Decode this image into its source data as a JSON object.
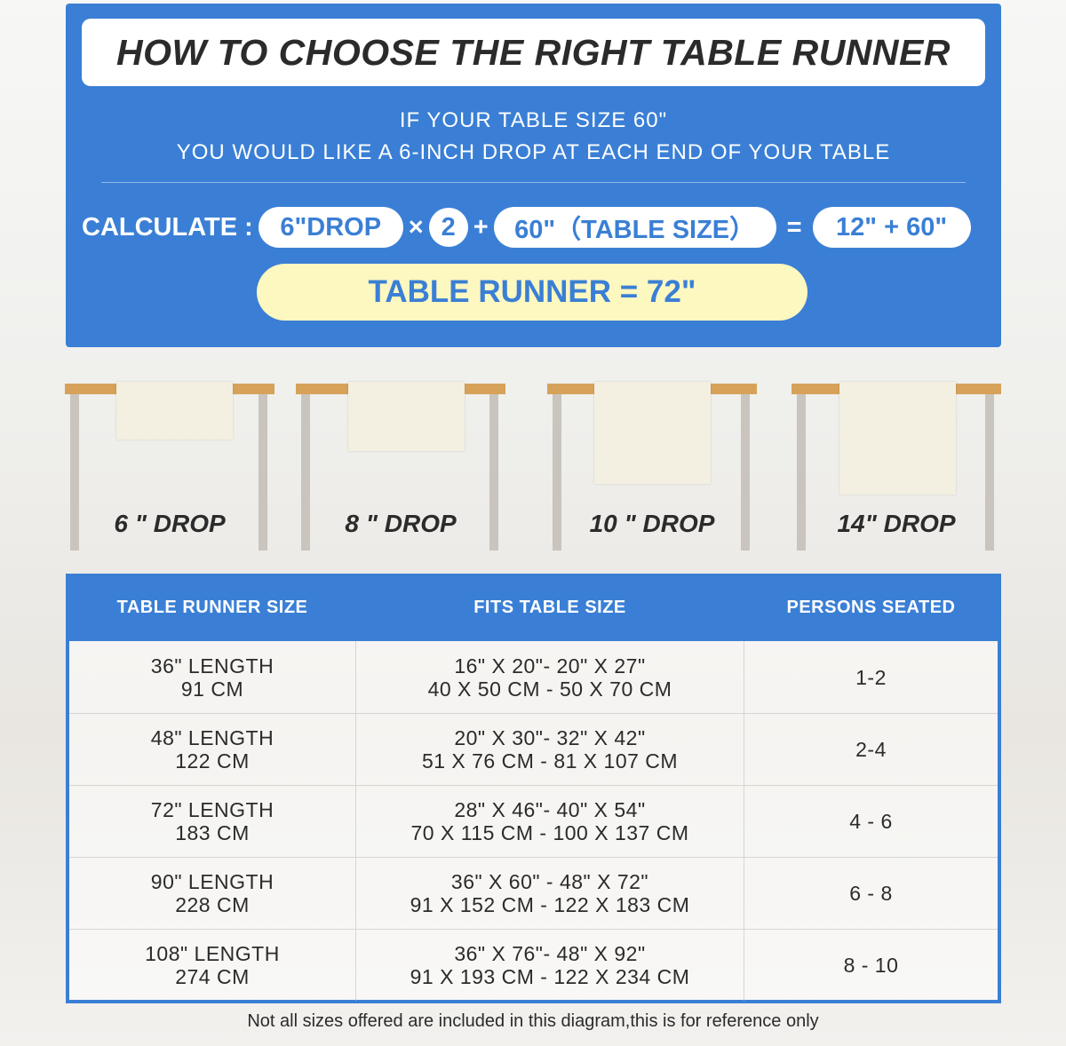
{
  "header": {
    "title": "HOW TO CHOOSE THE RIGHT TABLE RUNNER"
  },
  "intro": {
    "line1": "IF YOUR TABLE SIZE 60\"",
    "line2": "YOU WOULD LIKE A 6-INCH DROP AT EACH END OF YOUR TABLE"
  },
  "calculation": {
    "label": "CALCULATE :",
    "drop": "6\"DROP",
    "times": "×",
    "multiplier": "2",
    "plus": "+",
    "table_size": "60\"（TABLE SIZE）",
    "equals": "=",
    "sum": "12\" + 60\"",
    "result": "TABLE RUNNER = 72\""
  },
  "drops": [
    {
      "label": "6 \" DROP",
      "drop_inches": 6
    },
    {
      "label": "8 \" DROP",
      "drop_inches": 8
    },
    {
      "label": "10 \" DROP",
      "drop_inches": 10
    },
    {
      "label": "14\" DROP",
      "drop_inches": 14
    }
  ],
  "table": {
    "headers": [
      "TABLE RUNNER SIZE",
      "FITS TABLE SIZE",
      "PERSONS SEATED"
    ],
    "rows": [
      {
        "size": [
          "36\" LENGTH",
          "91 CM"
        ],
        "fits": [
          "16\" X 20\"- 20\" X 27\"",
          "40 X 50 CM - 50 X 70 CM"
        ],
        "persons": "1-2"
      },
      {
        "size": [
          "48\" LENGTH",
          "122 CM"
        ],
        "fits": [
          "20\" X 30\"- 32\" X 42\"",
          "51 X 76 CM - 81 X 107 CM"
        ],
        "persons": "2-4"
      },
      {
        "size": [
          "72\" LENGTH",
          "183 CM"
        ],
        "fits": [
          "28\" X 46\"- 40\" X 54\"",
          "70 X 115 CM - 100 X 137 CM"
        ],
        "persons": "4 - 6"
      },
      {
        "size": [
          "90\" LENGTH",
          "228 CM"
        ],
        "fits": [
          "36\" X 60\" - 48\" X 72\"",
          "91 X 152 CM - 122 X 183 CM"
        ],
        "persons": "6 - 8"
      },
      {
        "size": [
          "108\" LENGTH",
          "274 CM"
        ],
        "fits": [
          "36\" X 76\"- 48\" X 92\"",
          "91 X 193 CM - 122 X 234 CM"
        ],
        "persons": "8 - 10"
      }
    ]
  },
  "footnote": "Not all sizes offered are included in this diagram,this is for reference only",
  "colors": {
    "brand_blue": "#3a7fd5",
    "highlight_yellow": "#fdf7c0",
    "tabletop": "#d6a25a",
    "runner": "#f3efe1"
  }
}
